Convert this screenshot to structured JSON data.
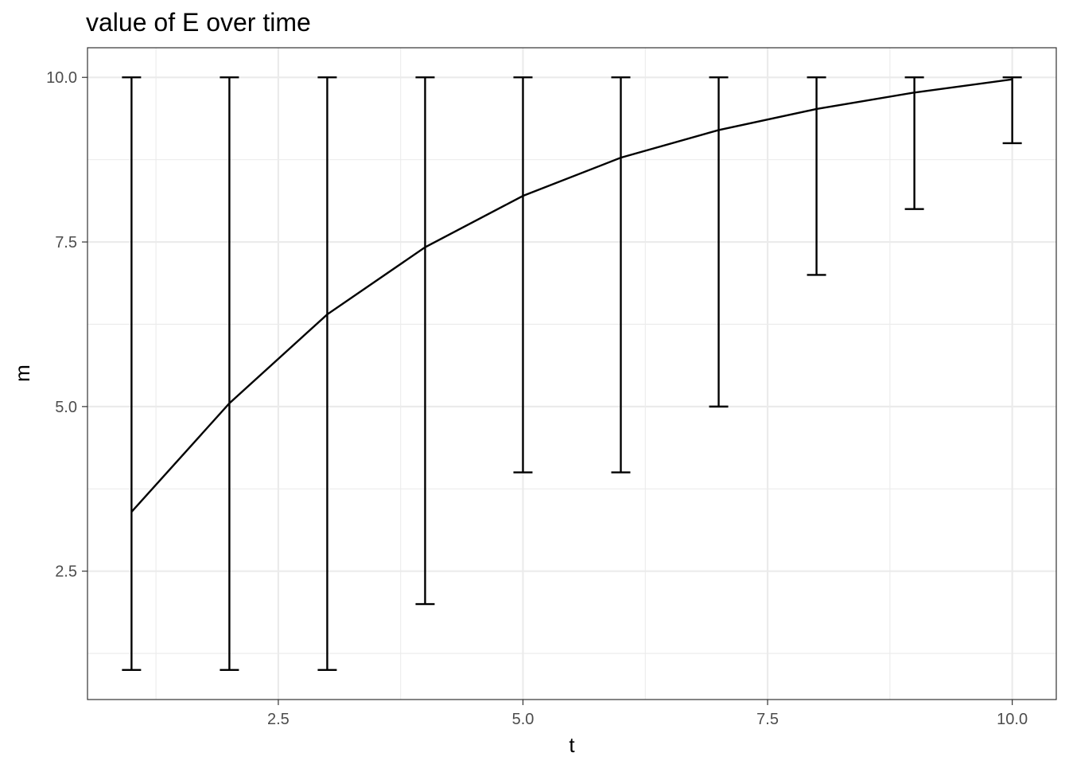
{
  "chart_data": {
    "type": "line",
    "title": "value of E over time",
    "xlabel": "t",
    "ylabel": "m",
    "xlim": [
      0.55,
      10.45
    ],
    "ylim": [
      0.55,
      10.45
    ],
    "x_ticks": [
      2.5,
      5.0,
      7.5,
      10.0
    ],
    "x_tick_labels": [
      "2.5",
      "5.0",
      "7.5",
      "10.0"
    ],
    "y_ticks": [
      2.5,
      5.0,
      7.5,
      10.0
    ],
    "y_tick_labels": [
      "2.5",
      "5.0",
      "7.5",
      "10.0"
    ],
    "grid": true,
    "series": [
      {
        "x": [
          1,
          2,
          3,
          4,
          5,
          6,
          7,
          8,
          9,
          10
        ],
        "values": [
          3.4,
          5.05,
          6.4,
          7.42,
          8.2,
          8.78,
          9.2,
          9.52,
          9.77,
          9.97
        ],
        "ymin": [
          1,
          1,
          1,
          2,
          4,
          4,
          5,
          7,
          8,
          9
        ],
        "ymax": [
          10,
          10,
          10,
          10,
          10,
          10,
          10,
          10,
          10,
          10
        ]
      }
    ],
    "colors": {
      "line": "#000000",
      "grid": "#ebebeb",
      "border": "#333333",
      "tick_text": "#4d4d4d"
    }
  }
}
